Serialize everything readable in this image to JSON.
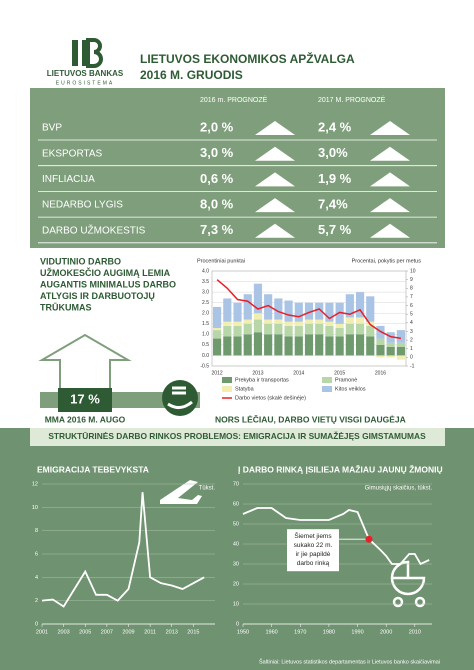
{
  "header": {
    "bank_name": "LIETUVOS BANKAS",
    "bank_sub": "EUROSISTEMA",
    "title_line1": "LIETUVOS EKONOMIKOS APŽVALGA",
    "title_line2": "2016 M. GRUODIS"
  },
  "forecast": {
    "columns": [
      "2016 m. PROGNOZĖ",
      "2017 M. PROGNOZĖ"
    ],
    "rows": [
      [
        "BVP",
        "2,0 %",
        "2,4 %"
      ],
      [
        "EKSPORTAS",
        "3,0 %",
        "3,0%"
      ],
      [
        "INFLIACIJA",
        "0,6 %",
        "1,9 %"
      ],
      [
        "NEDARBO LYGIS",
        "8,0 %",
        "7,4%"
      ],
      [
        "DARBO UŽMOKESTIS",
        "7,3 %",
        "5,7 %"
      ]
    ]
  },
  "wages": {
    "headline": [
      "VIDUTINIO DARBO",
      "UŽMOKESČIO AUGIMĄ LEMIA",
      "AUGANTIS MINIMALUS DARBO",
      "ATLYGIS IR DARBUOTOJŲ",
      "TRŪKUMAS"
    ],
    "mma_value": "17 %",
    "mma_caption": "MMA 2016 M. AUGO",
    "jobs_caption": "NORS LĖČIAU, DARBO VIETŲ VISGI DAUGĖJA"
  },
  "section_title": "STRUKTŪRINĖS DARBO RINKOS PROBLEMOS: EMIGRACIJA IR SUMAŽĖJĘS GIMSTAMUMAS",
  "chart_data": [
    {
      "type": "bar",
      "stacked": true,
      "y_label": "Procentiniai punktai",
      "y2_label": "Procentai, pokytis per metus",
      "categories": [
        "2012",
        null,
        null,
        null,
        "2013",
        null,
        null,
        null,
        "2014",
        null,
        null,
        null,
        "2015",
        null,
        null,
        null,
        "2016",
        null,
        null
      ],
      "series": [
        {
          "name": "Prekyba ir transportas",
          "color": "#6e9a6e",
          "values": [
            0.8,
            0.9,
            0.9,
            1.0,
            1.1,
            1.0,
            1.0,
            0.9,
            0.9,
            1.0,
            1.0,
            0.9,
            0.9,
            1.0,
            1.0,
            0.9,
            0.5,
            0.4,
            0.4
          ]
        },
        {
          "name": "Pramonė",
          "color": "#b8d7a8",
          "values": [
            0.4,
            0.5,
            0.5,
            0.5,
            0.6,
            0.5,
            0.5,
            0.5,
            0.5,
            0.5,
            0.5,
            0.5,
            0.4,
            0.5,
            0.5,
            0.5,
            0.3,
            0.2,
            0.2
          ]
        },
        {
          "name": "Statyba",
          "color": "#f2edb0",
          "values": [
            0.1,
            0.2,
            0.2,
            0.2,
            0.3,
            0.2,
            0.2,
            0.2,
            0.2,
            0.2,
            0.2,
            0.2,
            0.2,
            0.3,
            0.3,
            0.2,
            -0.1,
            -0.1,
            -0.2
          ]
        },
        {
          "name": "Kitos veiklos",
          "color": "#a9c4e4",
          "values": [
            1.0,
            1.1,
            0.9,
            1.2,
            1.4,
            1.2,
            1.0,
            1.0,
            0.9,
            0.8,
            0.8,
            0.9,
            1.0,
            1.1,
            1.2,
            1.2,
            0.6,
            0.5,
            0.6
          ]
        },
        {
          "name": "Darbo vietos (skalė dešinėje)",
          "color": "#e8202a",
          "type": "line",
          "axis": "y2",
          "values": [
            9.0,
            8.0,
            6.7,
            6.5,
            5.6,
            6.0,
            5.3,
            4.9,
            4.7,
            5.2,
            5.6,
            4.5,
            5.2,
            5.0,
            5.5,
            3.8,
            3.0,
            2.4,
            2.2
          ]
        }
      ],
      "ylim": [
        -0.5,
        4
      ],
      "yticks": [
        -0.5,
        {
          "value": 0,
          "label": "0.0"
        },
        0.5,
        {
          "value": 1,
          "label": "1.0"
        },
        1.5,
        {
          "value": 2,
          "label": "2.0"
        },
        2.5,
        {
          "value": 3,
          "label": "3.0"
        },
        3.5,
        {
          "value": 4,
          "label": "4.0"
        }
      ],
      "y2lim": [
        -1,
        10
      ],
      "y2ticks": [
        -1,
        0,
        1,
        2,
        3,
        4,
        5,
        6,
        7,
        8,
        9,
        10
      ],
      "grid": true
    },
    {
      "type": "line",
      "title": "EMIGRACIJA TEBEVYKSTA",
      "unit": "Tūkst.",
      "color": "#ffffff",
      "x": [
        2001,
        2002,
        2003,
        2004,
        2005,
        2006,
        2007,
        2008,
        2009,
        2010,
        2010.3,
        2011,
        2012,
        2013,
        2014,
        2015,
        2016
      ],
      "values": [
        2,
        2.1,
        1.5,
        3,
        4.5,
        2.5,
        2.5,
        2,
        3,
        7,
        11.3,
        4,
        3.5,
        3.3,
        3,
        3.5,
        4
      ],
      "xlim": [
        2001,
        2017
      ],
      "xticks": [
        2001,
        2003,
        2005,
        2007,
        2009,
        2011,
        2013,
        2015
      ],
      "ylim": [
        0,
        12
      ],
      "yticks": [
        0,
        2,
        4,
        6,
        8,
        10,
        12
      ],
      "grid": true
    },
    {
      "type": "line",
      "title": "Į DARBO RINKĄ ĮSILIEJA MAŽIAU JAUNŲ ŽMONIŲ",
      "unit": "Gimusiųjų skaičius, tūkst.",
      "color": "#ffffff",
      "x": [
        1950,
        1955,
        1960,
        1965,
        1970,
        1975,
        1980,
        1985,
        1987,
        1990,
        1994,
        1998,
        2000,
        2002,
        2005,
        2008,
        2010,
        2012,
        2015
      ],
      "values": [
        55,
        58,
        58,
        53,
        52,
        52,
        52,
        55,
        57,
        56,
        42.4,
        37,
        34,
        30,
        30,
        35,
        35,
        30,
        32
      ],
      "xlim": [
        1950,
        2016
      ],
      "xticks": [
        1950,
        1960,
        1970,
        1980,
        1990,
        2000,
        2010
      ],
      "ylim": [
        0,
        70
      ],
      "yticks": [
        0,
        10,
        20,
        30,
        40,
        50,
        60,
        70
      ],
      "grid": true,
      "annotation": {
        "lines": [
          "Šiemet jiems",
          "sukako 22 m.",
          "ir jie papildė",
          "darbo rinką"
        ],
        "x": 1994,
        "y": 42.4
      }
    }
  ],
  "footer": {
    "source": "Šaltiniai: Lietuvos statistikos departamentas ir Lietuvos banko skaičiavimai"
  }
}
